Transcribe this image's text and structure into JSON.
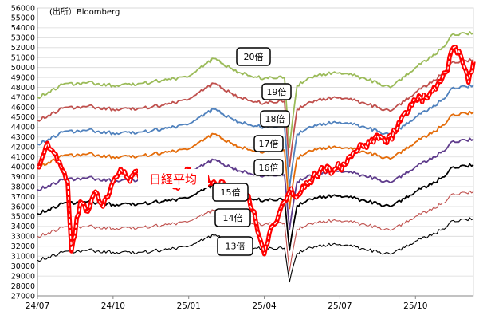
{
  "chart_data": {
    "type": "line",
    "source_note": "(出所）Bloomberg",
    "y_range": [
      27000,
      56000
    ],
    "y_ticks": [
      27000,
      28000,
      29000,
      30000,
      31000,
      32000,
      33000,
      34000,
      35000,
      36000,
      37000,
      38000,
      39000,
      40000,
      41000,
      42000,
      43000,
      44000,
      45000,
      46000,
      47000,
      48000,
      49000,
      50000,
      51000,
      52000,
      53000,
      54000,
      55000,
      56000
    ],
    "y_tick_labels": [
      "27000",
      "28000",
      "29000",
      "30000",
      "31000",
      "32000",
      "33000",
      "34000",
      "35000",
      "36000",
      "37000",
      "38000",
      "39000",
      "40000",
      "41000",
      "42000",
      "43000",
      "44000",
      "45000",
      "46000",
      "47000",
      "48000",
      "49000",
      "50000",
      "51000",
      "52000",
      "53000",
      "54000",
      "55000",
      "56000"
    ],
    "x_range": [
      0,
      17.3
    ],
    "x_ticks": [
      0,
      3,
      6,
      9,
      12,
      15
    ],
    "x_tick_labels": [
      "24/07",
      "24/10",
      "25/01",
      "25/04",
      "25/07",
      "25/10"
    ],
    "grid": "horizontal",
    "series": [
      {
        "name": "20倍",
        "color": "#9bbb59",
        "style": "solid",
        "points": [
          [
            0,
            47000
          ],
          [
            1,
            48300
          ],
          [
            2,
            48500
          ],
          [
            3,
            48200
          ],
          [
            4,
            48400
          ],
          [
            5,
            48700
          ],
          [
            6,
            49100
          ],
          [
            7,
            50900
          ],
          [
            8,
            49500
          ],
          [
            9,
            48900
          ],
          [
            9.8,
            49000
          ],
          [
            10,
            42000
          ],
          [
            10.3,
            48200
          ],
          [
            11,
            49200
          ],
          [
            12,
            49500
          ],
          [
            13,
            48900
          ],
          [
            14,
            48000
          ],
          [
            15,
            50000
          ],
          [
            16,
            51800
          ],
          [
            16.5,
            53400
          ],
          [
            17.3,
            53500
          ]
        ]
      },
      {
        "name": "19倍",
        "color": "#c0504d",
        "style": "solid",
        "points": [
          [
            0,
            44700
          ],
          [
            1,
            45900
          ],
          [
            2,
            46100
          ],
          [
            3,
            45800
          ],
          [
            4,
            45900
          ],
          [
            5,
            46200
          ],
          [
            6,
            46800
          ],
          [
            7,
            48400
          ],
          [
            8,
            47000
          ],
          [
            9,
            46400
          ],
          [
            9.8,
            46600
          ],
          [
            10,
            40000
          ],
          [
            10.3,
            45800
          ],
          [
            11,
            46700
          ],
          [
            12,
            47000
          ],
          [
            13,
            46400
          ],
          [
            14,
            45600
          ],
          [
            15,
            47500
          ],
          [
            16,
            49200
          ],
          [
            16.5,
            50600
          ],
          [
            17.3,
            50800
          ]
        ]
      },
      {
        "name": "18倍",
        "color": "#4f81bd",
        "style": "solid",
        "points": [
          [
            0,
            42300
          ],
          [
            1,
            43500
          ],
          [
            2,
            43700
          ],
          [
            3,
            43400
          ],
          [
            4,
            43500
          ],
          [
            5,
            43800
          ],
          [
            6,
            44300
          ],
          [
            7,
            45800
          ],
          [
            8,
            44500
          ],
          [
            9,
            44000
          ],
          [
            9.8,
            44100
          ],
          [
            10,
            37900
          ],
          [
            10.3,
            43300
          ],
          [
            11,
            44200
          ],
          [
            12,
            44500
          ],
          [
            13,
            44000
          ],
          [
            14,
            43200
          ],
          [
            15,
            45000
          ],
          [
            16,
            46600
          ],
          [
            16.5,
            48000
          ],
          [
            17.3,
            48200
          ]
        ]
      },
      {
        "name": "17倍",
        "color": "#e46c0a",
        "style": "solid",
        "points": [
          [
            0,
            40000
          ],
          [
            1,
            41100
          ],
          [
            2,
            41300
          ],
          [
            3,
            41000
          ],
          [
            4,
            41100
          ],
          [
            5,
            41400
          ],
          [
            6,
            41800
          ],
          [
            7,
            43300
          ],
          [
            8,
            42000
          ],
          [
            9,
            41500
          ],
          [
            9.8,
            41700
          ],
          [
            10,
            35800
          ],
          [
            10.3,
            40900
          ],
          [
            11,
            41800
          ],
          [
            12,
            42000
          ],
          [
            13,
            41500
          ],
          [
            14,
            40800
          ],
          [
            15,
            42500
          ],
          [
            16,
            44000
          ],
          [
            16.5,
            45300
          ],
          [
            17.3,
            45500
          ]
        ]
      },
      {
        "name": "16倍",
        "color": "#5f3c8c",
        "style": "solid",
        "points": [
          [
            0,
            37700
          ],
          [
            1,
            38700
          ],
          [
            2,
            38900
          ],
          [
            3,
            38600
          ],
          [
            4,
            38700
          ],
          [
            5,
            38900
          ],
          [
            6,
            39400
          ],
          [
            7,
            40700
          ],
          [
            8,
            39600
          ],
          [
            9,
            39100
          ],
          [
            9.8,
            39200
          ],
          [
            10,
            33700
          ],
          [
            10.3,
            38500
          ],
          [
            11,
            39300
          ],
          [
            12,
            39600
          ],
          [
            13,
            39100
          ],
          [
            14,
            38400
          ],
          [
            15,
            40000
          ],
          [
            16,
            41400
          ],
          [
            16.5,
            42600
          ],
          [
            17.3,
            42800
          ]
        ]
      },
      {
        "name": "15倍",
        "color": "#000000",
        "style": "solid",
        "points": [
          [
            0,
            35300
          ],
          [
            1,
            36300
          ],
          [
            2,
            36500
          ],
          [
            3,
            36200
          ],
          [
            4,
            36300
          ],
          [
            5,
            36500
          ],
          [
            6,
            36900
          ],
          [
            7,
            38200
          ],
          [
            8,
            37100
          ],
          [
            9,
            36600
          ],
          [
            9.8,
            36700
          ],
          [
            10,
            31600
          ],
          [
            10.3,
            36100
          ],
          [
            11,
            36900
          ],
          [
            12,
            37100
          ],
          [
            13,
            36600
          ],
          [
            14,
            36000
          ],
          [
            15,
            37500
          ],
          [
            16,
            38800
          ],
          [
            16.5,
            40000
          ],
          [
            17.3,
            40200
          ]
        ]
      },
      {
        "name": "14倍",
        "color": "#c0504d",
        "style": "thin",
        "points": [
          [
            0,
            33000
          ],
          [
            1,
            33900
          ],
          [
            2,
            34000
          ],
          [
            3,
            33800
          ],
          [
            4,
            33900
          ],
          [
            5,
            34100
          ],
          [
            6,
            34500
          ],
          [
            7,
            35600
          ],
          [
            8,
            34600
          ],
          [
            9,
            34200
          ],
          [
            9.8,
            34300
          ],
          [
            10,
            29500
          ],
          [
            10.3,
            33700
          ],
          [
            11,
            34400
          ],
          [
            12,
            34600
          ],
          [
            13,
            34200
          ],
          [
            14,
            33600
          ],
          [
            15,
            35000
          ],
          [
            16,
            36200
          ],
          [
            16.5,
            37300
          ],
          [
            17.3,
            37500
          ]
        ]
      },
      {
        "name": "13倍",
        "color": "#000000",
        "style": "thin",
        "points": [
          [
            0,
            30600
          ],
          [
            1,
            31400
          ],
          [
            2,
            31600
          ],
          [
            3,
            31400
          ],
          [
            4,
            31400
          ],
          [
            5,
            31600
          ],
          [
            6,
            32000
          ],
          [
            7,
            33100
          ],
          [
            8,
            32200
          ],
          [
            9,
            31700
          ],
          [
            9.8,
            31800
          ],
          [
            10,
            28400
          ],
          [
            10.3,
            31300
          ],
          [
            11,
            32000
          ],
          [
            12,
            32200
          ],
          [
            13,
            31700
          ],
          [
            14,
            31200
          ],
          [
            15,
            32500
          ],
          [
            16,
            33600
          ],
          [
            16.5,
            34600
          ],
          [
            17.3,
            34800
          ]
        ]
      },
      {
        "name": "日経平均",
        "color": "#ff0000",
        "style": "nikkei",
        "points": [
          [
            0,
            40000
          ],
          [
            0.4,
            42400
          ],
          [
            0.8,
            40500
          ],
          [
            1.2,
            38500
          ],
          [
            1.35,
            31500
          ],
          [
            1.7,
            36500
          ],
          [
            2,
            35500
          ],
          [
            2.3,
            37500
          ],
          [
            2.6,
            36000
          ],
          [
            3,
            38500
          ],
          [
            3.3,
            39800
          ],
          [
            3.6,
            38800
          ],
          [
            4,
            39300
          ],
          [
            4.4,
            38600
          ],
          [
            5,
            39300
          ],
          [
            5.5,
            38000
          ],
          [
            6,
            39800
          ],
          [
            6.5,
            38800
          ],
          [
            7,
            38500
          ],
          [
            7.5,
            38000
          ],
          [
            8,
            36800
          ],
          [
            8.3,
            37200
          ],
          [
            8.6,
            35500
          ],
          [
            8.8,
            33000
          ],
          [
            9,
            31200
          ],
          [
            9.2,
            33300
          ],
          [
            9.5,
            34500
          ],
          [
            9.8,
            36500
          ],
          [
            10,
            37500
          ],
          [
            10.4,
            37200
          ],
          [
            10.8,
            38500
          ],
          [
            11.2,
            39500
          ],
          [
            11.8,
            39800
          ],
          [
            12.2,
            40200
          ],
          [
            12.6,
            41500
          ],
          [
            13,
            42200
          ],
          [
            13.4,
            43000
          ],
          [
            13.8,
            42500
          ],
          [
            14.2,
            43500
          ],
          [
            14.6,
            45500
          ],
          [
            15,
            46700
          ],
          [
            15.4,
            47000
          ],
          [
            15.8,
            47800
          ],
          [
            16.2,
            49500
          ],
          [
            16.5,
            52000
          ],
          [
            16.8,
            51200
          ],
          [
            17,
            49700
          ],
          [
            17.1,
            48500
          ],
          [
            17.3,
            50600
          ]
        ]
      }
    ],
    "annotations": [
      {
        "series": "20倍",
        "text": "20倍"
      },
      {
        "series": "19倍",
        "text": "19倍"
      },
      {
        "series": "18倍",
        "text": "18倍"
      },
      {
        "series": "17倍",
        "text": "17倍"
      },
      {
        "series": "16倍",
        "text": "16倍"
      },
      {
        "series": "15倍",
        "text": "15倍"
      },
      {
        "series": "14倍",
        "text": "14倍"
      },
      {
        "series": "13倍",
        "text": "13倍"
      },
      {
        "series": "日経平均",
        "text": "日経平均"
      }
    ]
  }
}
